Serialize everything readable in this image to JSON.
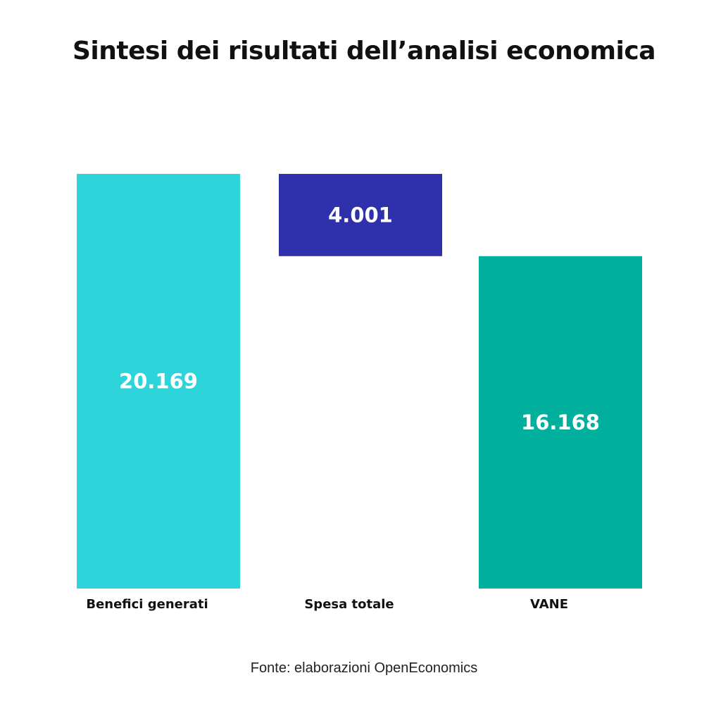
{
  "chart_data": {
    "type": "bar",
    "subtype": "waterfall",
    "title": "Sintesi dei risultati dell’analisi economica",
    "source": "Fonte: elaborazioni OpenEconomics",
    "xlabel": "",
    "ylabel": "",
    "categories": [
      "Benefici generati",
      "Spesa totale",
      "VANE"
    ],
    "values": [
      20169,
      -4001,
      16168
    ],
    "value_labels": [
      "20.169",
      "4.001",
      "16.168"
    ],
    "colors": [
      "#2dd4da",
      "#2e31ab",
      "#00b09c"
    ],
    "ylim": [
      0,
      20169
    ],
    "grid": false,
    "legend": "none"
  }
}
